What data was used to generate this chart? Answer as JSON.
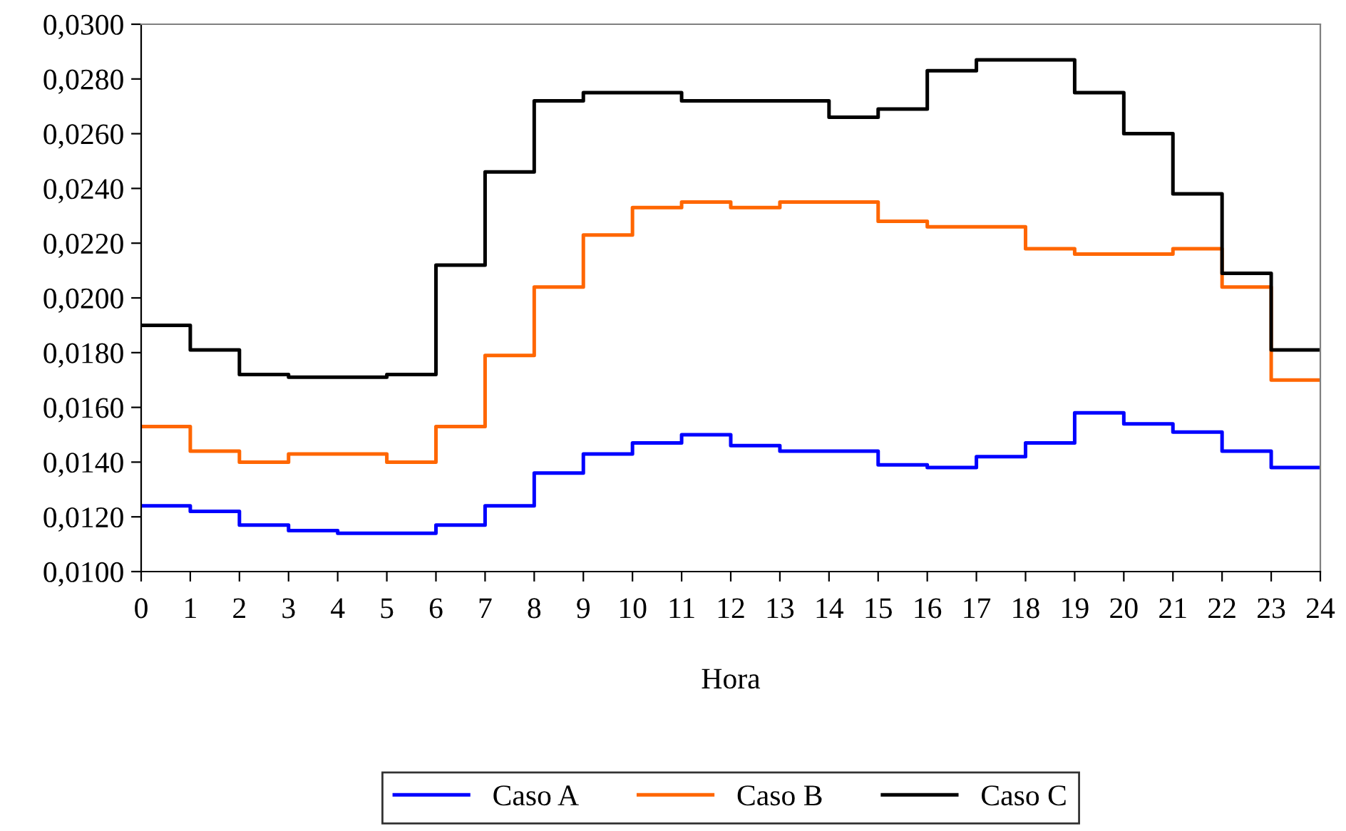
{
  "chart_data": {
    "type": "step",
    "xlabel": "Hora",
    "x": [
      0,
      1,
      2,
      3,
      4,
      5,
      6,
      7,
      8,
      9,
      10,
      11,
      12,
      13,
      14,
      15,
      16,
      17,
      18,
      19,
      20,
      21,
      22,
      23,
      24
    ],
    "series": [
      {
        "name": "Caso A",
        "color": "#0000ff",
        "values": [
          0.0124,
          0.0122,
          0.0117,
          0.0115,
          0.0114,
          0.0114,
          0.0117,
          0.0124,
          0.0136,
          0.0143,
          0.0147,
          0.015,
          0.0146,
          0.0144,
          0.0144,
          0.0139,
          0.0138,
          0.0142,
          0.0147,
          0.0158,
          0.0154,
          0.0151,
          0.0144,
          0.0138,
          0.0138
        ]
      },
      {
        "name": "Caso B",
        "color": "#ff6600",
        "values": [
          0.0153,
          0.0144,
          0.014,
          0.0143,
          0.0143,
          0.014,
          0.0153,
          0.0179,
          0.0204,
          0.0223,
          0.0233,
          0.0235,
          0.0233,
          0.0235,
          0.0235,
          0.0228,
          0.0226,
          0.0226,
          0.0218,
          0.0216,
          0.0216,
          0.0218,
          0.0204,
          0.017,
          0.017
        ]
      },
      {
        "name": "Caso C",
        "color": "#000000",
        "values": [
          0.019,
          0.0181,
          0.0172,
          0.0171,
          0.0171,
          0.0172,
          0.0212,
          0.0246,
          0.0272,
          0.0275,
          0.0275,
          0.0272,
          0.0272,
          0.0272,
          0.0266,
          0.0269,
          0.0283,
          0.0287,
          0.0287,
          0.0275,
          0.026,
          0.0238,
          0.0209,
          0.0181,
          0.0181
        ]
      }
    ],
    "xlim": [
      0,
      24
    ],
    "xticks": [
      0,
      1,
      2,
      3,
      4,
      5,
      6,
      7,
      8,
      9,
      10,
      11,
      12,
      13,
      14,
      15,
      16,
      17,
      18,
      19,
      20,
      21,
      22,
      23,
      24
    ],
    "ylim": [
      0.01,
      0.03
    ],
    "yticks": [
      {
        "value": 0.01,
        "label": "0,0100"
      },
      {
        "value": 0.012,
        "label": "0,0120"
      },
      {
        "value": 0.014,
        "label": "0,0140"
      },
      {
        "value": 0.016,
        "label": "0,0160"
      },
      {
        "value": 0.018,
        "label": "0,0180"
      },
      {
        "value": 0.02,
        "label": "0,0200"
      },
      {
        "value": 0.022,
        "label": "0,0220"
      },
      {
        "value": 0.024,
        "label": "0,0240"
      },
      {
        "value": 0.026,
        "label": "0,0260"
      },
      {
        "value": 0.028,
        "label": "0,0280"
      },
      {
        "value": 0.03,
        "label": "0,0300"
      }
    ],
    "grid": false,
    "legend": "bottom",
    "line_style": "solid"
  }
}
